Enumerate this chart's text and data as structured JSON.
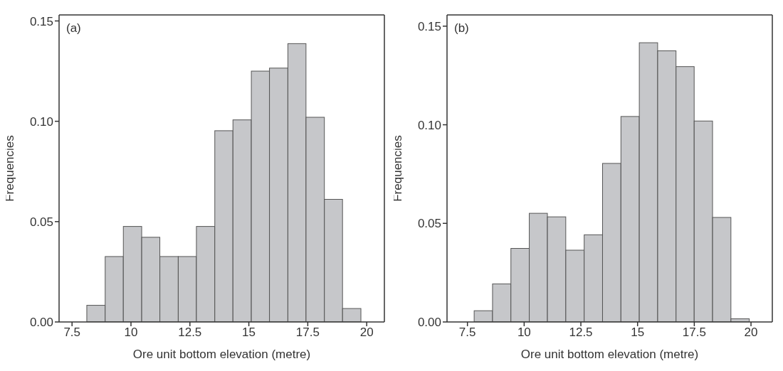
{
  "chart_data": [
    {
      "type": "histogram",
      "xlabel": "Ore unit bottom elevation (metre)",
      "ylabel": "Frequencies",
      "annotations": [
        "(a)"
      ],
      "color": "#c6c7ca",
      "bins": [
        8.12,
        8.9,
        9.67,
        10.45,
        11.22,
        12.0,
        12.77,
        13.55,
        14.32,
        15.1,
        15.87,
        16.65,
        17.42,
        18.2,
        18.97,
        19.75
      ],
      "values": [
        0.0083,
        0.0326,
        0.0476,
        0.0422,
        0.0326,
        0.0326,
        0.0476,
        0.0953,
        0.1007,
        0.125,
        0.1265,
        0.1387,
        0.102,
        0.0611,
        0.0067
      ],
      "xlim": [
        6.95,
        20.75
      ],
      "ylim": [
        0,
        0.153
      ],
      "xticks": [
        7.5,
        10,
        12.5,
        15,
        17.5,
        20
      ],
      "yticks": [
        {
          "value": 0,
          "label": "0.00"
        },
        {
          "value": 0.05,
          "label": "0.05"
        },
        {
          "value": 0.1,
          "label": "0.10"
        },
        {
          "value": 0.15,
          "label": "0.15"
        }
      ]
    },
    {
      "type": "histogram",
      "xlabel": "Ore unit bottom elevation (metre)",
      "ylabel": "Frequencies",
      "annotations": [
        "(b)"
      ],
      "color": "#c6c7ca",
      "bins": [
        7.79,
        8.6,
        9.41,
        10.22,
        11.02,
        11.83,
        12.64,
        13.45,
        14.26,
        15.07,
        15.88,
        16.69,
        17.49,
        18.3,
        19.11,
        19.92
      ],
      "values": [
        0.0057,
        0.0193,
        0.0373,
        0.0551,
        0.0533,
        0.0364,
        0.0442,
        0.0804,
        0.1042,
        0.1416,
        0.1375,
        0.1295,
        0.1019,
        0.053,
        0.0016
      ],
      "xlim": [
        6.6,
        20.94
      ],
      "ylim": [
        0,
        0.1557
      ],
      "xticks": [
        7.5,
        10,
        12.5,
        15,
        17.5,
        20
      ],
      "yticks": [
        {
          "value": 0,
          "label": "0.00"
        },
        {
          "value": 0.05,
          "label": "0.05"
        },
        {
          "value": 0.1,
          "label": "0.10"
        },
        {
          "value": 0.15,
          "label": "0.15"
        }
      ]
    }
  ]
}
